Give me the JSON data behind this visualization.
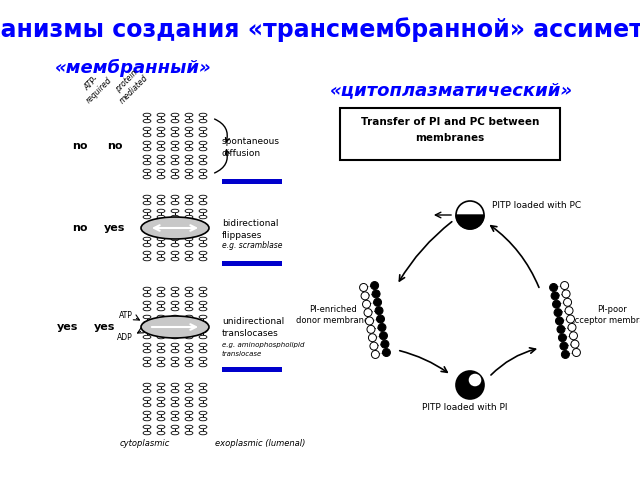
{
  "title": "Механизмы создания «трансмембранной» ассиметрии",
  "label_membrane": "«мембранный»",
  "label_cytoplasmic": "«цитоплазматический»",
  "title_color": "#0000FF",
  "label_color": "#0000FF",
  "bg_color": "#FFFFFF",
  "title_fontsize": 17,
  "label_fontsize": 13,
  "figsize": [
    6.4,
    4.8
  ],
  "dpi": 100
}
